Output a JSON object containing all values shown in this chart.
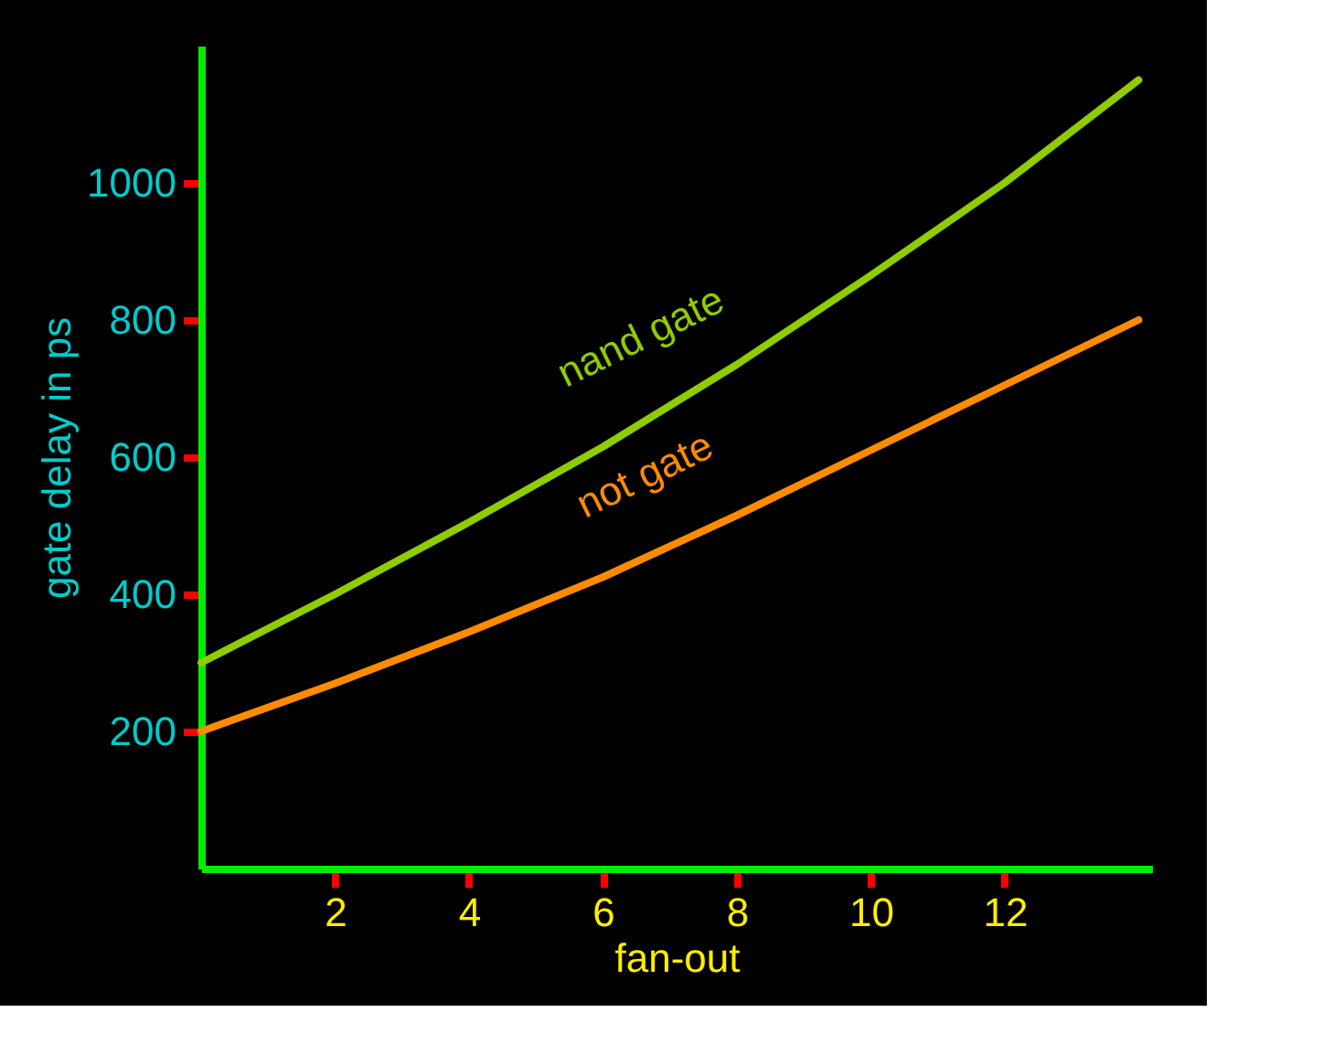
{
  "chart_data": {
    "type": "line",
    "xlabel": "fan-out",
    "ylabel": "gate delay in ps",
    "x": [
      0,
      2,
      4,
      6,
      8,
      10,
      12,
      14
    ],
    "series": [
      {
        "name": "nand gate",
        "color": "#8fcc00",
        "values": [
          300,
          400,
          505,
          615,
          735,
          865,
          1000,
          1150
        ]
      },
      {
        "name": "not gate",
        "color": "#ff8c00",
        "values": [
          200,
          270,
          345,
          425,
          515,
          610,
          705,
          800
        ]
      }
    ],
    "xlim": [
      0,
      14.2
    ],
    "ylim": [
      0,
      1200
    ],
    "xticks": [
      2,
      4,
      6,
      8,
      10,
      12
    ],
    "yticks": [
      200,
      400,
      600,
      800,
      1000
    ],
    "grid": false,
    "legend": false,
    "marker": "none",
    "line_style": "solid"
  }
}
